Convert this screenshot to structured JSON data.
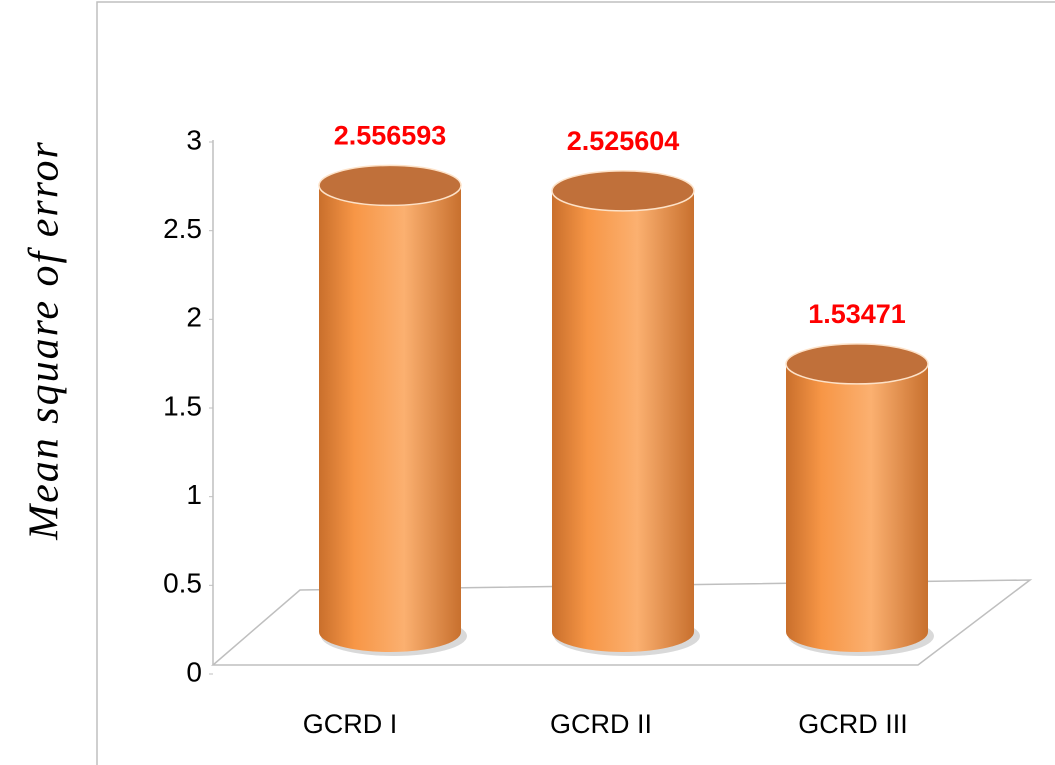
{
  "chart_data": {
    "type": "bar",
    "y_axis_label": "Mean square of error",
    "categories": [
      "GCRD I",
      "GCRD II",
      "GCRD III"
    ],
    "values": [
      2.556593,
      2.525604,
      1.53471
    ],
    "color": "#f79646",
    "label_color": "#ff0000",
    "ylim": [
      0,
      3
    ],
    "yticks": [
      0,
      0.5,
      1,
      1.5,
      2,
      2.5,
      3
    ],
    "grid": false
  }
}
